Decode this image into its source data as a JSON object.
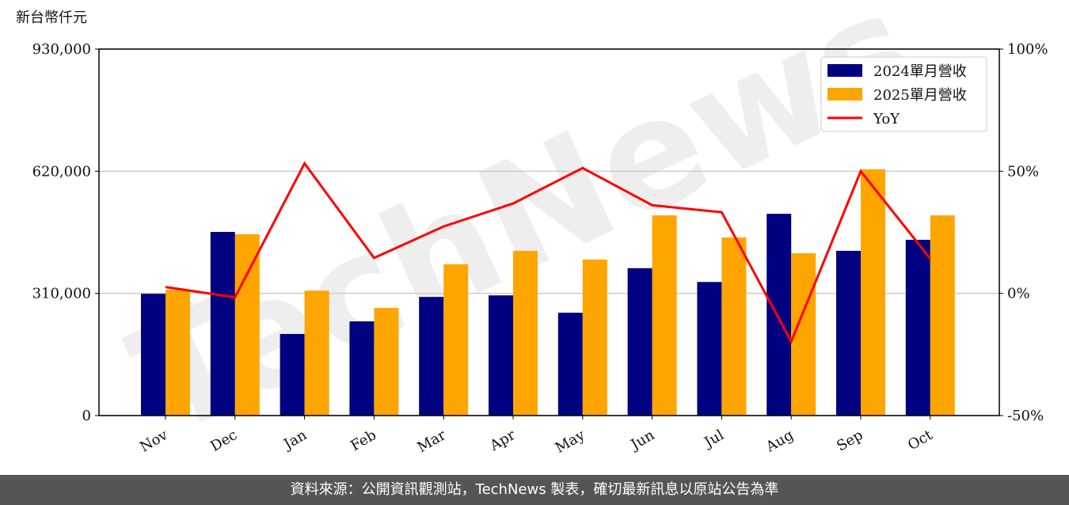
{
  "chart_data": {
    "type": "bar_line",
    "y_label": "新台幣仟元",
    "watermark": "TechNews",
    "categories": [
      "Nov",
      "Dec",
      "Jan",
      "Feb",
      "Mar",
      "Apr",
      "May",
      "Jun",
      "Jul",
      "Aug",
      "Sep",
      "Oct"
    ],
    "series": [
      {
        "name": "2024單月營收",
        "color": "#000080",
        "values": [
          309000,
          466000,
          207000,
          239000,
          301000,
          305000,
          261000,
          374000,
          339000,
          512000,
          418000,
          446000
        ]
      },
      {
        "name": "2025單月營收",
        "color": "#ffa500",
        "values": [
          319000,
          460000,
          317000,
          273000,
          384000,
          418000,
          396000,
          508000,
          452000,
          412000,
          625000,
          508000
        ]
      },
      {
        "name": "YoY",
        "color": "#ff0000",
        "axis": "y2",
        "values": [
          2.6,
          -1.6,
          53.2,
          14.5,
          27.4,
          36.8,
          51.3,
          36.1,
          33.2,
          -19.7,
          50,
          14.2
        ]
      }
    ],
    "ylim": [
      0,
      930000
    ],
    "yticks": [
      {
        "value": 0,
        "label": "0"
      },
      {
        "value": 310000,
        "label": "310,000"
      },
      {
        "value": 620000,
        "label": "620,000"
      },
      {
        "value": 930000,
        "label": "930,000"
      }
    ],
    "y2lim": [
      -50,
      100
    ],
    "y2ticks": [
      {
        "value": -50,
        "label": "-50%"
      },
      {
        "value": 0,
        "label": "0%"
      },
      {
        "value": 50,
        "label": "50%"
      },
      {
        "value": 100,
        "label": "100%"
      }
    ],
    "grid": true,
    "legend": "upper right"
  },
  "footer": "資料來源：公開資訊觀測站，TechNews 製表，確切最新訊息以原站公告為準"
}
